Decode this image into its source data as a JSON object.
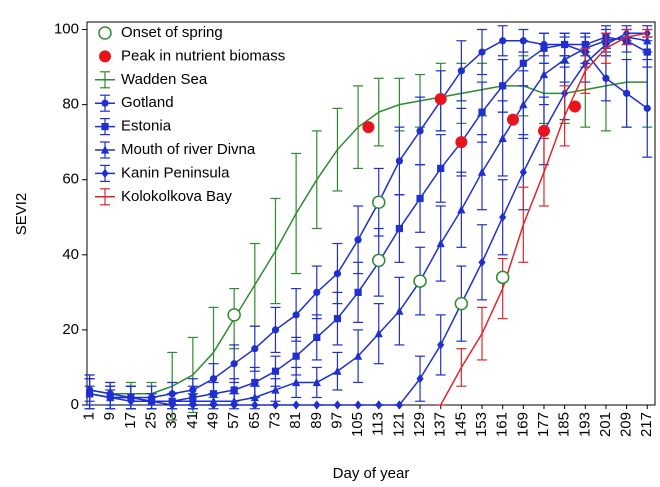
{
  "chart_data": {
    "type": "line",
    "xlabel": "Day of year",
    "ylabel": "SEVI2",
    "x": [
      1,
      9,
      17,
      25,
      33,
      41,
      49,
      57,
      65,
      73,
      81,
      89,
      97,
      105,
      113,
      121,
      129,
      137,
      145,
      153,
      161,
      169,
      177,
      185,
      193,
      201,
      209,
      217
    ],
    "xlim": [
      0,
      220
    ],
    "ylim": [
      0,
      102
    ],
    "xticks": [
      1,
      9,
      17,
      25,
      33,
      41,
      49,
      57,
      65,
      73,
      81,
      89,
      97,
      105,
      113,
      121,
      129,
      137,
      145,
      153,
      161,
      169,
      177,
      185,
      193,
      201,
      209,
      217
    ],
    "yticks": [
      0,
      20,
      40,
      60,
      80,
      100
    ],
    "legend": "upper left",
    "points": [
      {
        "name": "Onset of spring",
        "color": "#2e8b2e",
        "marker": "open-circle",
        "x": [
          57,
          113,
          113,
          129,
          145,
          161
        ],
        "values": [
          24,
          54,
          38.5,
          33,
          27,
          34
        ]
      },
      {
        "name": "Peak in nutrient biomass",
        "color": "#e8141c",
        "marker": "filled-circle",
        "x": [
          109,
          137,
          145,
          165,
          177,
          189
        ],
        "values": [
          74,
          81.5,
          70,
          76,
          73,
          79.5
        ]
      }
    ],
    "series": [
      {
        "name": "Wadden Sea",
        "color": "#2e8b2e",
        "marker": "none",
        "values": [
          4,
          3,
          3,
          3,
          5,
          8,
          14,
          23,
          32,
          41,
          51,
          60,
          68,
          74,
          78,
          80,
          81,
          82,
          83,
          84,
          85,
          85,
          83,
          83,
          84,
          85,
          86,
          86
        ],
        "errors": [
          4,
          3,
          3,
          3,
          9,
          10,
          12,
          8,
          11,
          14,
          16,
          13,
          11,
          11,
          9,
          7,
          7,
          9,
          8,
          7,
          7,
          8,
          8,
          8,
          10,
          12,
          12,
          12
        ]
      },
      {
        "name": "Gotland",
        "color": "#1f2fd0",
        "marker": "circle",
        "values": [
          4,
          3,
          2,
          2,
          3,
          4,
          7,
          11,
          15,
          20,
          24,
          30,
          35,
          44,
          54,
          65,
          73,
          81,
          89,
          94,
          97,
          97,
          96,
          96,
          94,
          87,
          83,
          79
        ],
        "errors": [
          4,
          3,
          3,
          3,
          3,
          3,
          4,
          5,
          6,
          6,
          7,
          7,
          8,
          9,
          9,
          9,
          9,
          8,
          8,
          6,
          4,
          3,
          3,
          3,
          4,
          6,
          9,
          13
        ]
      },
      {
        "name": "Estonia",
        "color": "#1f2fd0",
        "marker": "square",
        "values": [
          3,
          2,
          2,
          1,
          1,
          2,
          3,
          4,
          6,
          9,
          13,
          18,
          23,
          30,
          38,
          47,
          55,
          63,
          70,
          78,
          85,
          91,
          95,
          96,
          96,
          98,
          97,
          94
        ],
        "errors": [
          4,
          3,
          3,
          2,
          2,
          3,
          3,
          3,
          4,
          4,
          5,
          6,
          7,
          8,
          9,
          9,
          9,
          9,
          9,
          8,
          7,
          6,
          4,
          3,
          3,
          3,
          3,
          4
        ]
      },
      {
        "name": "Mouth of river Divna",
        "color": "#1f2fd0",
        "marker": "triangle",
        "values": [
          3,
          2,
          2,
          1,
          1,
          1,
          1,
          1,
          2,
          4,
          6,
          6,
          9,
          13,
          19,
          25,
          33,
          43,
          52,
          62,
          71,
          80,
          88,
          92,
          95,
          97,
          98,
          97
        ],
        "errors": [
          4,
          3,
          3,
          2,
          2,
          2,
          2,
          2,
          3,
          3,
          4,
          4,
          5,
          7,
          8,
          9,
          9,
          10,
          10,
          10,
          10,
          9,
          8,
          6,
          4,
          3,
          2,
          3
        ]
      },
      {
        "name": "Kanin Peninsula",
        "color": "#1f2fd0",
        "marker": "diamond",
        "values": [
          3,
          2,
          1,
          1,
          0,
          0,
          0,
          0,
          0,
          0,
          0,
          0,
          0,
          0,
          0,
          0,
          7,
          16,
          27,
          38,
          50,
          62,
          73,
          83,
          91,
          96,
          99,
          99
        ],
        "errors": [
          2,
          2,
          1,
          1,
          0,
          0,
          0,
          0,
          0,
          0,
          0,
          0,
          0,
          0,
          0,
          0,
          6,
          8,
          10,
          10,
          10,
          10,
          9,
          7,
          5,
          3,
          2,
          2
        ]
      },
      {
        "name": "Kolokolkova Bay",
        "color": "#e0262a",
        "marker": "none",
        "values": [
          null,
          null,
          null,
          null,
          null,
          null,
          null,
          null,
          null,
          null,
          null,
          null,
          null,
          null,
          null,
          null,
          null,
          0,
          10,
          19,
          31,
          48,
          62,
          77,
          89,
          95,
          98,
          99
        ],
        "errors": [
          null,
          null,
          null,
          null,
          null,
          null,
          null,
          null,
          null,
          null,
          null,
          null,
          null,
          null,
          null,
          null,
          null,
          0,
          5,
          7,
          8,
          10,
          9,
          8,
          6,
          4,
          2,
          1
        ]
      }
    ]
  }
}
